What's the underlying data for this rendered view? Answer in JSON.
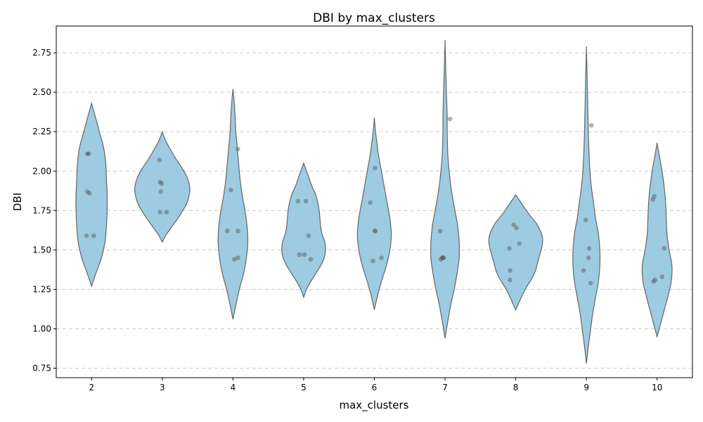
{
  "chart_data": {
    "type": "violin",
    "title": "DBI by max_clusters",
    "xlabel": "max_clusters",
    "ylabel": "DBI",
    "ylim": [
      0.69,
      2.92
    ],
    "yticks": [
      0.75,
      1.0,
      1.25,
      1.5,
      1.75,
      2.0,
      2.25,
      2.5,
      2.75
    ],
    "ytick_labels": [
      "0.75",
      "1.00",
      "1.25",
      "1.50",
      "1.75",
      "2.00",
      "2.25",
      "2.50",
      "2.75"
    ],
    "grid": "y",
    "colors": {
      "violin_fill": "#92c5de",
      "violin_edge": "#666666",
      "point": "#555555"
    },
    "categories": [
      "2",
      "3",
      "4",
      "5",
      "6",
      "7",
      "8",
      "9",
      "10"
    ],
    "violins": [
      {
        "category": "2",
        "min": 1.27,
        "max": 2.43,
        "profile": [
          [
            1.27,
            0
          ],
          [
            1.35,
            0.06
          ],
          [
            1.45,
            0.14
          ],
          [
            1.55,
            0.19
          ],
          [
            1.65,
            0.21
          ],
          [
            1.75,
            0.22
          ],
          [
            1.85,
            0.22
          ],
          [
            1.95,
            0.21
          ],
          [
            2.05,
            0.2
          ],
          [
            2.15,
            0.17
          ],
          [
            2.25,
            0.11
          ],
          [
            2.35,
            0.05
          ],
          [
            2.43,
            0
          ]
        ],
        "points": [
          [
            -0.06,
            2.11
          ],
          [
            -0.04,
            2.11
          ],
          [
            -0.07,
            1.59
          ],
          [
            0.03,
            1.59
          ],
          [
            -0.06,
            1.87
          ],
          [
            -0.03,
            1.86
          ]
        ]
      },
      {
        "category": "3",
        "min": 1.55,
        "max": 2.25,
        "profile": [
          [
            1.55,
            0
          ],
          [
            1.6,
            0.06
          ],
          [
            1.65,
            0.14
          ],
          [
            1.7,
            0.22
          ],
          [
            1.75,
            0.29
          ],
          [
            1.8,
            0.35
          ],
          [
            1.88,
            0.39
          ],
          [
            1.95,
            0.36
          ],
          [
            2.02,
            0.28
          ],
          [
            2.08,
            0.19
          ],
          [
            2.15,
            0.1
          ],
          [
            2.2,
            0.04
          ],
          [
            2.25,
            0
          ]
        ],
        "points": [
          [
            -0.04,
            2.07
          ],
          [
            -0.03,
            1.93
          ],
          [
            -0.01,
            1.92
          ],
          [
            -0.02,
            1.87
          ],
          [
            -0.03,
            1.74
          ],
          [
            0.06,
            1.74
          ]
        ]
      },
      {
        "category": "4",
        "min": 1.06,
        "max": 2.52,
        "profile": [
          [
            1.06,
            0
          ],
          [
            1.15,
            0.04
          ],
          [
            1.25,
            0.09
          ],
          [
            1.35,
            0.15
          ],
          [
            1.45,
            0.19
          ],
          [
            1.55,
            0.21
          ],
          [
            1.65,
            0.2
          ],
          [
            1.75,
            0.17
          ],
          [
            1.85,
            0.13
          ],
          [
            1.95,
            0.1
          ],
          [
            2.05,
            0.08
          ],
          [
            2.15,
            0.06
          ],
          [
            2.25,
            0.04
          ],
          [
            2.35,
            0.03
          ],
          [
            2.45,
            0.015
          ],
          [
            2.52,
            0
          ]
        ],
        "points": [
          [
            -0.03,
            1.88
          ],
          [
            0.07,
            2.14
          ],
          [
            -0.08,
            1.62
          ],
          [
            0.07,
            1.62
          ],
          [
            0.02,
            1.44
          ],
          [
            0.07,
            1.45
          ]
        ]
      },
      {
        "category": "5",
        "min": 1.2,
        "max": 2.05,
        "profile": [
          [
            1.2,
            0
          ],
          [
            1.25,
            0.04
          ],
          [
            1.3,
            0.1
          ],
          [
            1.35,
            0.17
          ],
          [
            1.4,
            0.24
          ],
          [
            1.45,
            0.29
          ],
          [
            1.5,
            0.31
          ],
          [
            1.55,
            0.3
          ],
          [
            1.6,
            0.26
          ],
          [
            1.65,
            0.24
          ],
          [
            1.7,
            0.23
          ],
          [
            1.75,
            0.22
          ],
          [
            1.8,
            0.2
          ],
          [
            1.85,
            0.17
          ],
          [
            1.9,
            0.12
          ],
          [
            1.95,
            0.08
          ],
          [
            2.0,
            0.04
          ],
          [
            2.05,
            0
          ]
        ],
        "points": [
          [
            -0.08,
            1.81
          ],
          [
            0.03,
            1.81
          ],
          [
            0.07,
            1.59
          ],
          [
            -0.06,
            1.47
          ],
          [
            0.01,
            1.47
          ],
          [
            0.1,
            1.44
          ]
        ]
      },
      {
        "category": "6",
        "min": 1.12,
        "max": 2.34,
        "profile": [
          [
            1.12,
            0
          ],
          [
            1.2,
            0.04
          ],
          [
            1.3,
            0.1
          ],
          [
            1.4,
            0.17
          ],
          [
            1.5,
            0.22
          ],
          [
            1.6,
            0.24
          ],
          [
            1.7,
            0.22
          ],
          [
            1.8,
            0.18
          ],
          [
            1.9,
            0.14
          ],
          [
            2.0,
            0.1
          ],
          [
            2.1,
            0.06
          ],
          [
            2.2,
            0.03
          ],
          [
            2.28,
            0.01
          ],
          [
            2.34,
            0
          ]
        ],
        "points": [
          [
            -0.06,
            1.8
          ],
          [
            0.01,
            2.02
          ],
          [
            0.01,
            1.62
          ],
          [
            0.01,
            1.62
          ],
          [
            -0.02,
            1.43
          ],
          [
            0.1,
            1.45
          ]
        ]
      },
      {
        "category": "7",
        "min": 0.94,
        "max": 2.83,
        "profile": [
          [
            0.94,
            0
          ],
          [
            1.05,
            0.04
          ],
          [
            1.15,
            0.08
          ],
          [
            1.25,
            0.13
          ],
          [
            1.35,
            0.17
          ],
          [
            1.45,
            0.2
          ],
          [
            1.55,
            0.2
          ],
          [
            1.65,
            0.18
          ],
          [
            1.75,
            0.14
          ],
          [
            1.85,
            0.1
          ],
          [
            1.95,
            0.07
          ],
          [
            2.1,
            0.04
          ],
          [
            2.25,
            0.03
          ],
          [
            2.35,
            0.03
          ],
          [
            2.5,
            0.02
          ],
          [
            2.65,
            0.01
          ],
          [
            2.83,
            0
          ]
        ],
        "points": [
          [
            0.07,
            2.33
          ],
          [
            -0.07,
            1.62
          ],
          [
            -0.02,
            1.45
          ],
          [
            -0.04,
            1.45
          ],
          [
            -0.06,
            1.44
          ],
          [
            -0.03,
            1.45
          ]
        ]
      },
      {
        "category": "8",
        "min": 1.12,
        "max": 1.85,
        "profile": [
          [
            1.12,
            0
          ],
          [
            1.17,
            0.05
          ],
          [
            1.22,
            0.1
          ],
          [
            1.27,
            0.16
          ],
          [
            1.32,
            0.23
          ],
          [
            1.37,
            0.28
          ],
          [
            1.42,
            0.31
          ],
          [
            1.47,
            0.34
          ],
          [
            1.52,
            0.37
          ],
          [
            1.57,
            0.38
          ],
          [
            1.62,
            0.35
          ],
          [
            1.67,
            0.29
          ],
          [
            1.72,
            0.2
          ],
          [
            1.77,
            0.12
          ],
          [
            1.81,
            0.06
          ],
          [
            1.85,
            0
          ]
        ],
        "points": [
          [
            -0.03,
            1.66
          ],
          [
            0.01,
            1.64
          ],
          [
            0.05,
            1.54
          ],
          [
            -0.09,
            1.51
          ],
          [
            -0.08,
            1.37
          ],
          [
            -0.08,
            1.31
          ]
        ]
      },
      {
        "category": "9",
        "min": 0.78,
        "max": 2.79,
        "profile": [
          [
            0.78,
            0
          ],
          [
            0.9,
            0.03
          ],
          [
            1.0,
            0.06
          ],
          [
            1.1,
            0.09
          ],
          [
            1.2,
            0.13
          ],
          [
            1.3,
            0.17
          ],
          [
            1.4,
            0.19
          ],
          [
            1.5,
            0.19
          ],
          [
            1.6,
            0.17
          ],
          [
            1.7,
            0.13
          ],
          [
            1.8,
            0.1
          ],
          [
            1.9,
            0.07
          ],
          [
            2.0,
            0.05
          ],
          [
            2.2,
            0.03
          ],
          [
            2.4,
            0.02
          ],
          [
            2.6,
            0.01
          ],
          [
            2.79,
            0
          ]
        ],
        "points": [
          [
            -0.01,
            1.69
          ],
          [
            0.07,
            2.29
          ],
          [
            0.04,
            1.51
          ],
          [
            0.03,
            1.45
          ],
          [
            -0.04,
            1.37
          ],
          [
            0.06,
            1.29
          ]
        ]
      },
      {
        "category": "10",
        "min": 0.95,
        "max": 2.18,
        "profile": [
          [
            0.95,
            0
          ],
          [
            1.0,
            0.03
          ],
          [
            1.1,
            0.09
          ],
          [
            1.2,
            0.15
          ],
          [
            1.3,
            0.2
          ],
          [
            1.4,
            0.21
          ],
          [
            1.5,
            0.17
          ],
          [
            1.6,
            0.14
          ],
          [
            1.7,
            0.13
          ],
          [
            1.8,
            0.12
          ],
          [
            1.9,
            0.1
          ],
          [
            2.0,
            0.07
          ],
          [
            2.1,
            0.03
          ],
          [
            2.18,
            0
          ]
        ],
        "points": [
          [
            -0.06,
            1.82
          ],
          [
            -0.04,
            1.84
          ],
          [
            0.1,
            1.51
          ],
          [
            0.07,
            1.33
          ],
          [
            -0.03,
            1.31
          ],
          [
            -0.05,
            1.3
          ]
        ]
      }
    ]
  }
}
